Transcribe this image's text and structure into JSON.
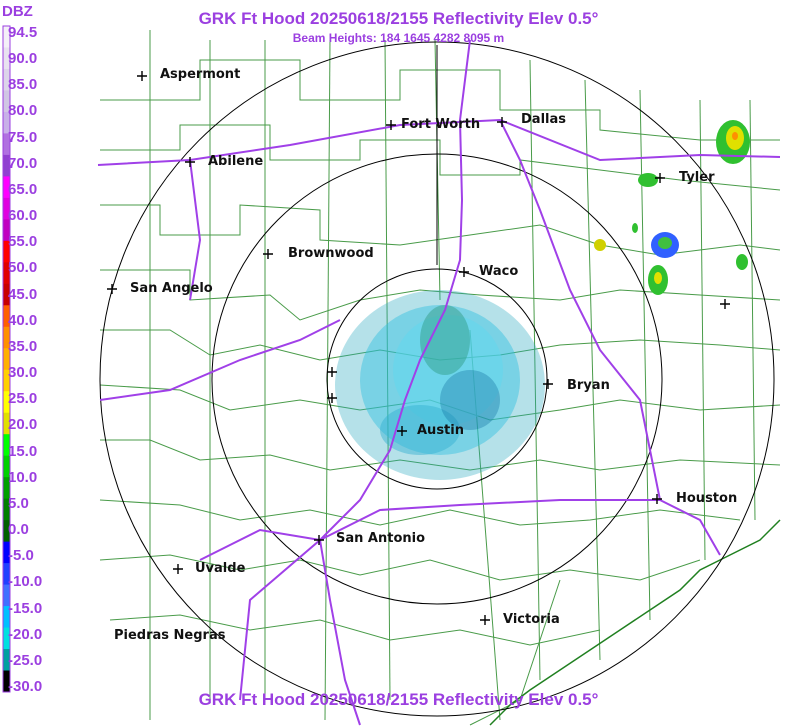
{
  "header": {
    "title": "GRK Ft Hood 20250618/2155 Reflectivity Elev 0.5°",
    "beam_heights": "Beam Heights: 184 1645 4282 8095 m",
    "footer_title": "GRK Ft Hood 20250618/2155 Reflectivity Elev 0.5°"
  },
  "legend": {
    "unit": "DBZ",
    "labels": [
      "94.5",
      "90.0",
      "85.0",
      "80.0",
      "75.0",
      "70.0",
      "65.0",
      "60.0",
      "55.0",
      "50.0",
      "45.0",
      "40.0",
      "35.0",
      "30.0",
      "25.0",
      "20.0",
      "15.0",
      "10.0",
      "5.0",
      "0.0",
      "-5.0",
      "-10.0",
      "-15.0",
      "-20.0",
      "-25.0",
      "-30.0"
    ],
    "colors": [
      "#f4f0f8",
      "#e8e2f0",
      "#dcd4ea",
      "#d0c6e4",
      "#c8b0e8",
      "#b070e0",
      "#9040d0",
      "#ff00ff",
      "#e000e0",
      "#c000c0",
      "#ff0000",
      "#e00000",
      "#c80000",
      "#ff6000",
      "#ff9000",
      "#ffb000",
      "#ffd000",
      "#ffff00",
      "#e0e000",
      "#00ff00",
      "#00d000",
      "#00a000",
      "#008000",
      "#006000",
      "#0000ff",
      "#2040ff",
      "#4070ff",
      "#00c0ff",
      "#00e0e0",
      "#00a0a0",
      "#000000"
    ]
  },
  "map": {
    "cities": [
      {
        "name": "Aspermont"
      },
      {
        "name": "Fort Worth"
      },
      {
        "name": "Dallas"
      },
      {
        "name": "Abilene"
      },
      {
        "name": "Tyler"
      },
      {
        "name": "Brownwood"
      },
      {
        "name": "Waco"
      },
      {
        "name": "San Angelo"
      },
      {
        "name": "Bryan"
      },
      {
        "name": "Austin"
      },
      {
        "name": "Houston"
      },
      {
        "name": "San Antonio"
      },
      {
        "name": "Uvalde"
      },
      {
        "name": "Victoria"
      },
      {
        "name": "Piedras Negras"
      }
    ],
    "radar_site": "GRK",
    "colors": {
      "roads": "#a040e8",
      "counties": "#208020",
      "rings": "#000000",
      "title": "#9b3fe0"
    }
  }
}
